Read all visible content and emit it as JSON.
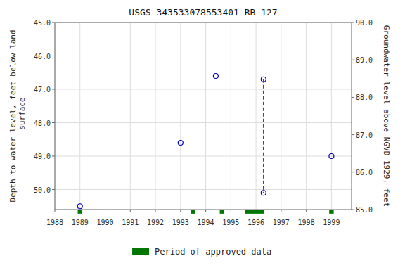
{
  "chart_data": {
    "type": "scatter",
    "title": "USGS 343533078553401 RB-127",
    "y_label": "Depth to water level, feet below land\n surface",
    "y2_label": "Groundwater level above NGVD 1929, feet",
    "series": [
      {
        "type": "scatter",
        "x": [
          1989.0,
          1993.0,
          1994.4,
          1996.3,
          1996.3,
          1999.0
        ],
        "values": [
          50.5,
          48.6,
          46.6,
          46.7,
          50.1,
          49.0
        ],
        "color": "#0000bb",
        "marker": "circle",
        "line_style": "none"
      },
      {
        "type": "line",
        "x": [
          1996.3,
          1996.3
        ],
        "values": [
          46.7,
          50.1
        ],
        "color": "#0000bb",
        "line_style": "dashed"
      },
      {
        "type": "bar",
        "name": "Period of approved data",
        "x": [
          1989.0,
          1993.5,
          1994.65,
          1995.95,
          1999.0
        ],
        "widths": [
          0.18,
          0.18,
          0.18,
          0.75,
          0.18
        ],
        "color": "#007700"
      }
    ],
    "xlim": [
      1988.0,
      1999.8
    ],
    "xticks": [
      1988,
      1989,
      1990,
      1991,
      1992,
      1993,
      1994,
      1995,
      1996,
      1997,
      1998,
      1999
    ],
    "ylim": [
      50.6,
      45.0
    ],
    "yticks": [
      {
        "value": 45.0,
        "label": "45.0"
      },
      {
        "value": 46.0,
        "label": "46.0"
      },
      {
        "value": 47.0,
        "label": "47.0"
      },
      {
        "value": 48.0,
        "label": "48.0"
      },
      {
        "value": 49.0,
        "label": "49.0"
      },
      {
        "value": 50.0,
        "label": "50.0"
      }
    ],
    "y2lim": [
      85.0,
      90.0
    ],
    "y2ticks": [
      {
        "value": 85.0,
        "label": "85.0"
      },
      {
        "value": 86.0,
        "label": "86.0"
      },
      {
        "value": 87.0,
        "label": "87.0"
      },
      {
        "value": 88.0,
        "label": "88.0"
      },
      {
        "value": 89.0,
        "label": "89.0"
      },
      {
        "value": 90.0,
        "label": "90.0"
      }
    ],
    "grid": true,
    "legend": "bottom"
  }
}
